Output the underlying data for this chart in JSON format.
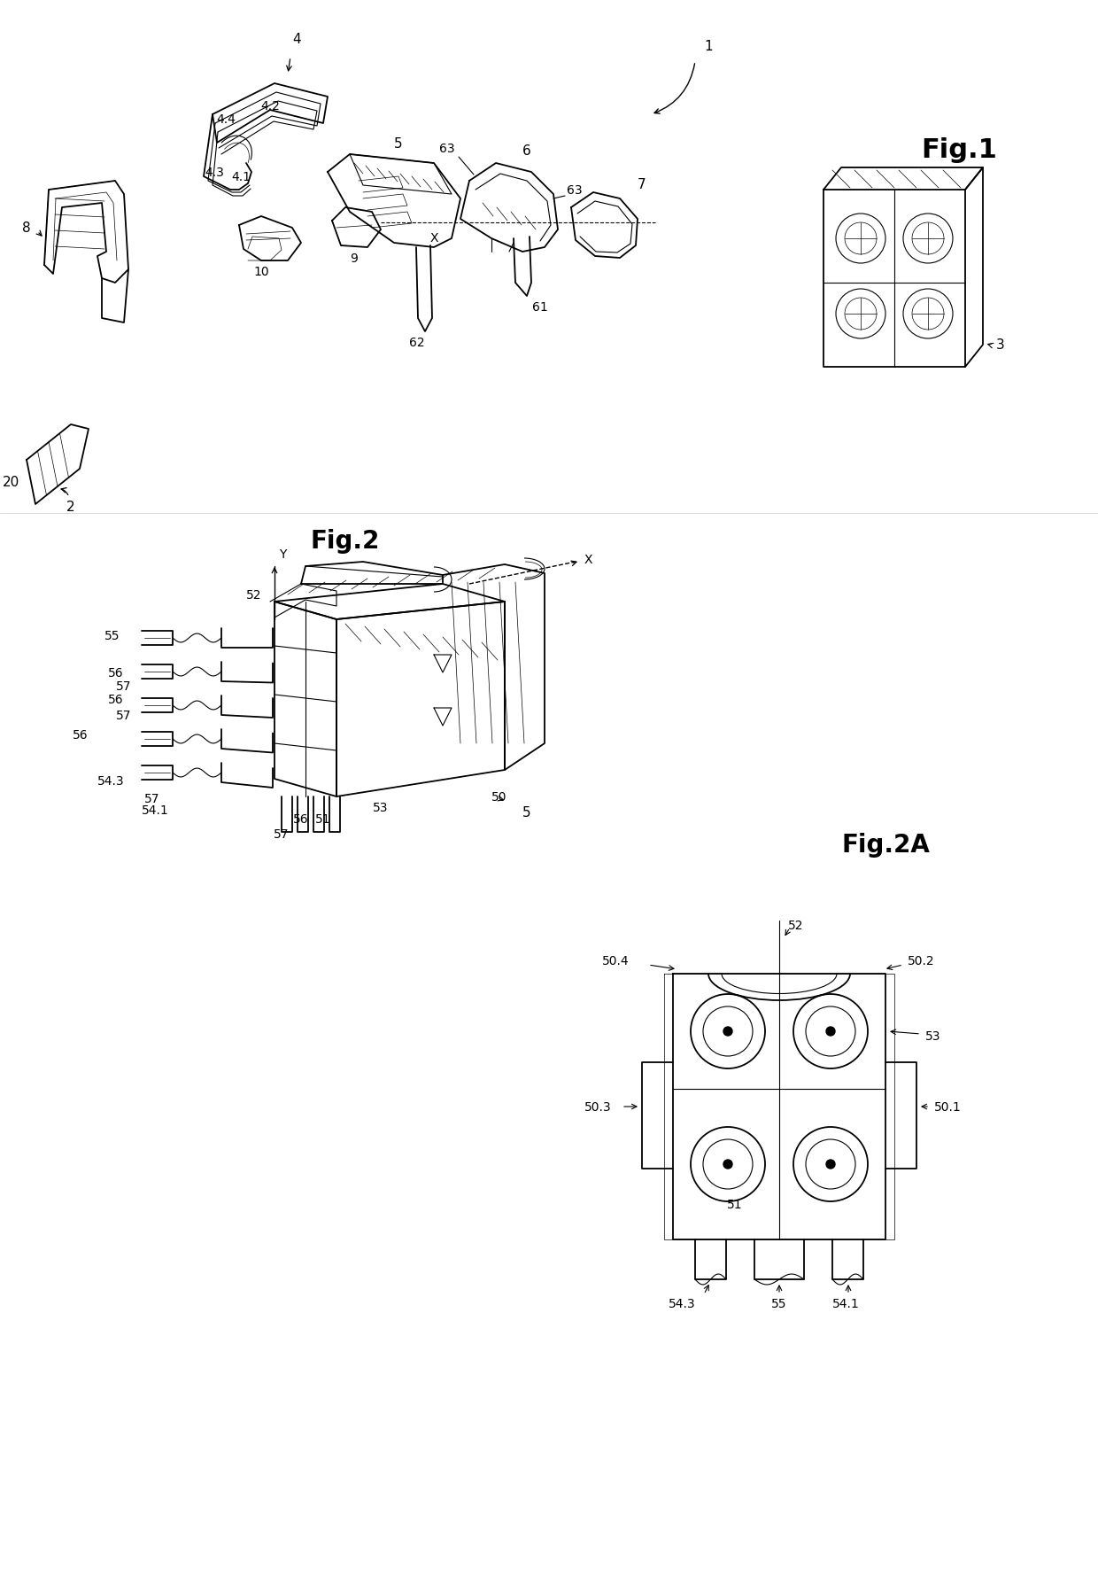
{
  "background_color": "#ffffff",
  "fig_width": 12.4,
  "fig_height": 17.81,
  "fig1_title": "Fig.1",
  "fig2_title": "Fig.2",
  "fig2a_title": "Fig.2A"
}
